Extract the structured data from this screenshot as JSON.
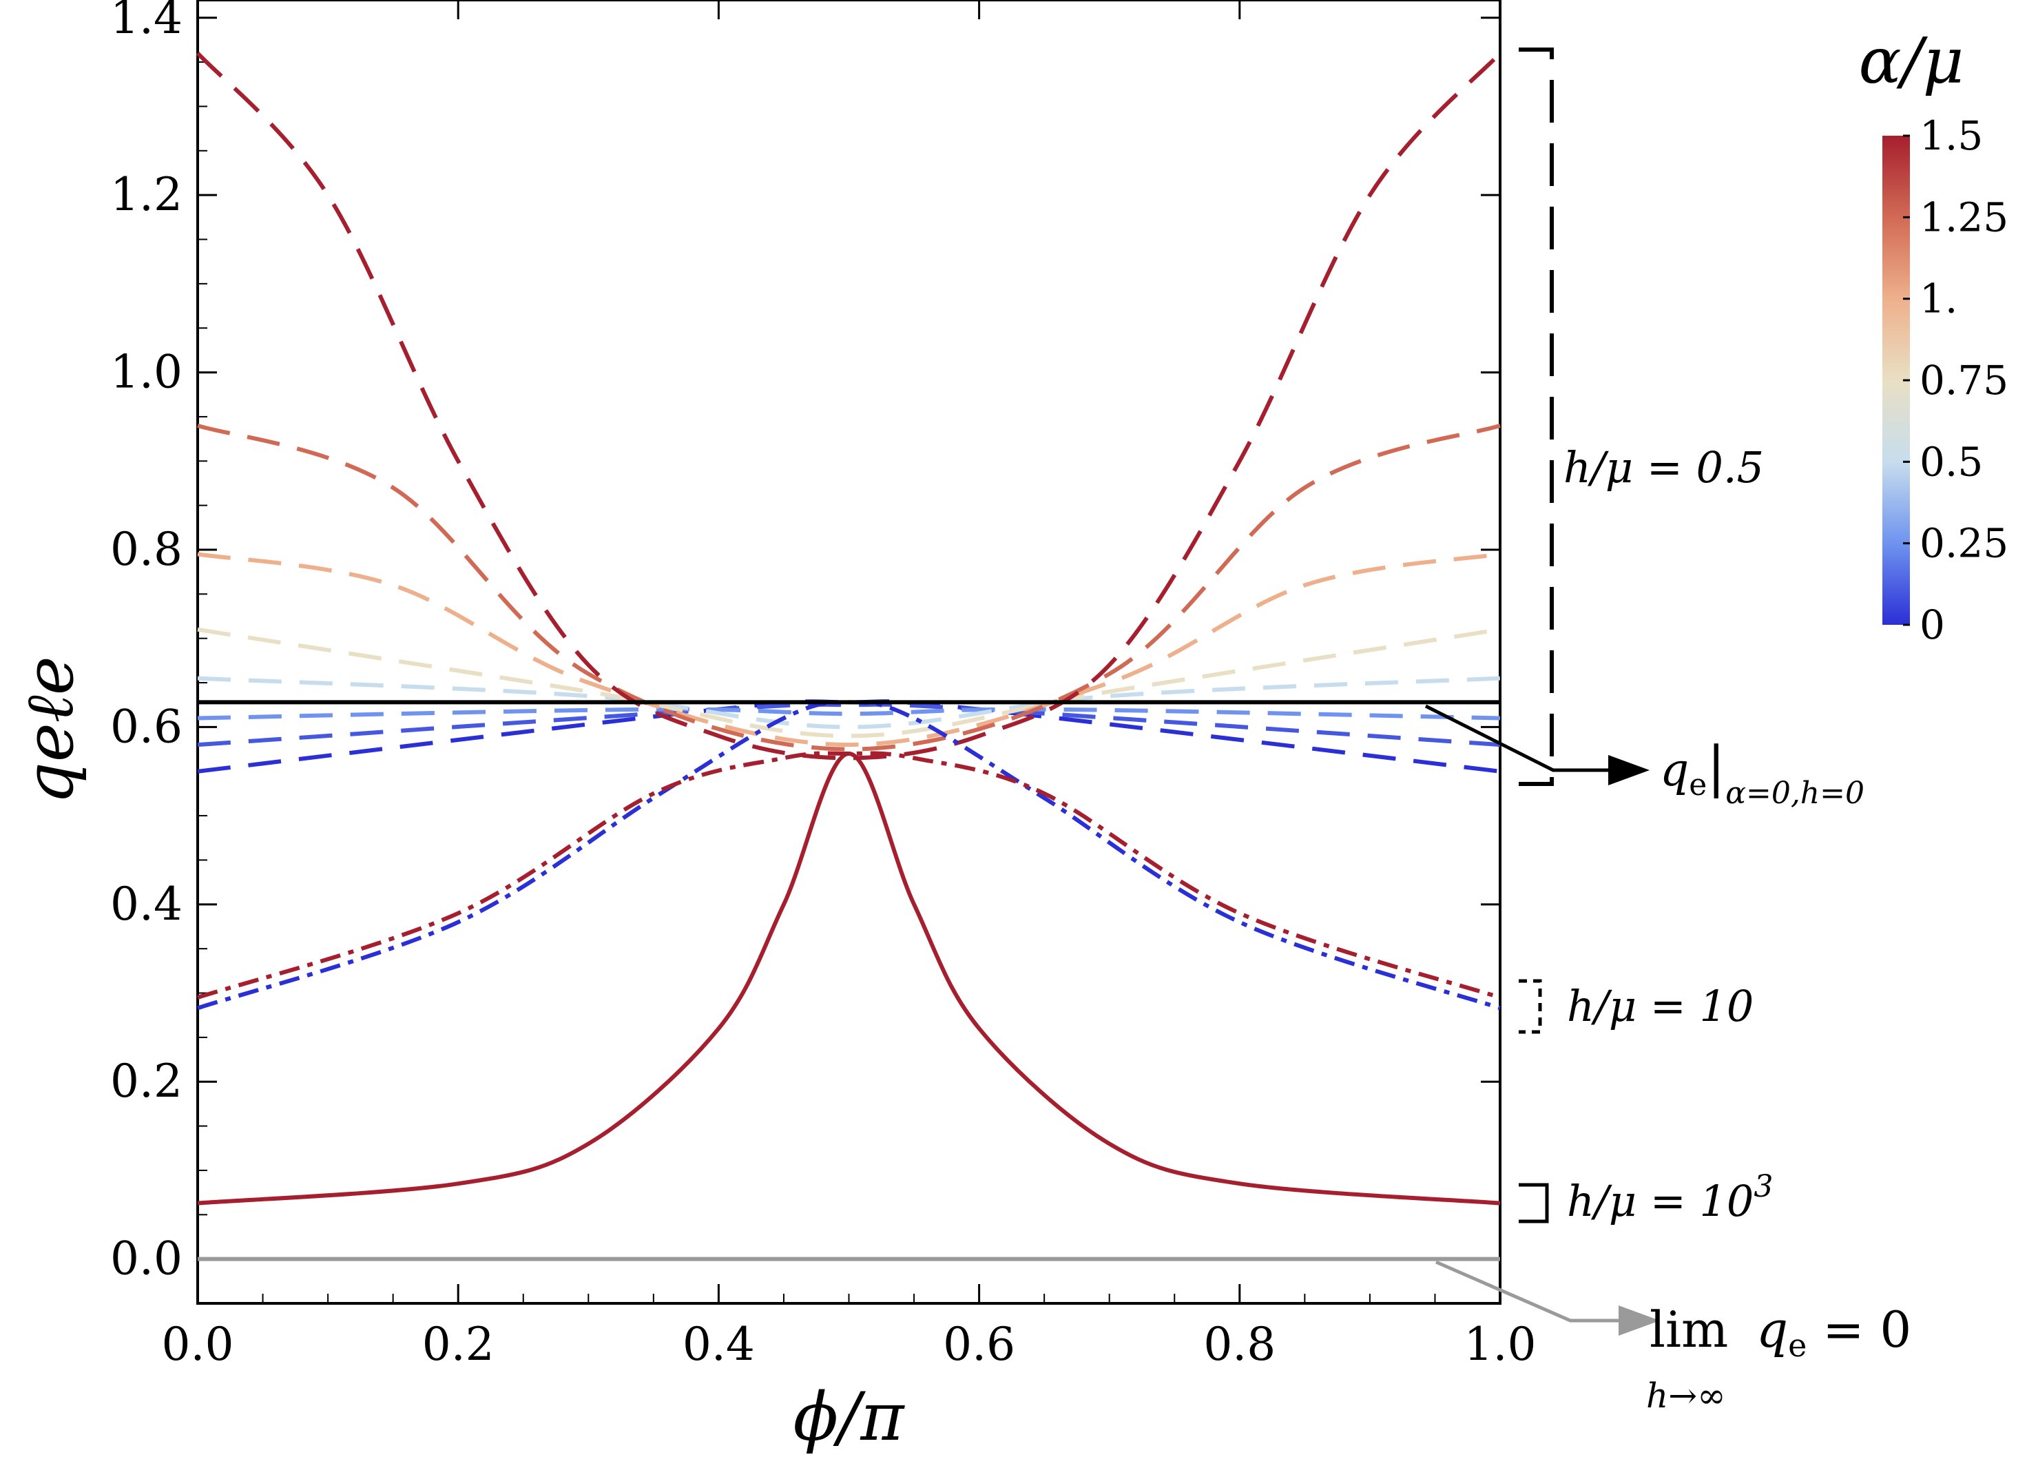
{
  "chart_data": {
    "type": "line",
    "xlabel": "ϕ/π",
    "ylabel": "qeℓe",
    "xlim": [
      0,
      1
    ],
    "ylim": [
      -0.05,
      1.42
    ],
    "x_ticks": [
      "0.0",
      "0.2",
      "0.4",
      "0.6",
      "0.8",
      "1.0"
    ],
    "y_ticks": [
      "0.0",
      "0.2",
      "0.4",
      "0.6",
      "0.8",
      "1.0",
      "1.2",
      "1.4"
    ],
    "grid": false,
    "colorbar": {
      "title": "α/μ",
      "range": [
        0,
        1.5
      ],
      "tick_labels": [
        "0",
        "0.25",
        "0.5",
        "0.75",
        "1.",
        "1.25",
        "1.5"
      ],
      "colors": [
        "#2b2fd6",
        "#6f93ef",
        "#c7dded",
        "#e9dfc4",
        "#eeb08c",
        "#d16a55",
        "#a51f2e"
      ]
    },
    "reference_lines": [
      {
        "label": "qe|α=0,h=0",
        "y": 0.628,
        "color": "#000000"
      },
      {
        "label": "lim h→∞ qe = 0",
        "y": 0.0,
        "color": "#9a9a9a"
      }
    ],
    "groups": [
      {
        "label": "h/μ = 0.5",
        "style": "dashed",
        "series": [
          {
            "alpha": 1.5,
            "values": [
              [
                0,
                1.36
              ],
              [
                0.1,
                1.2
              ],
              [
                0.2,
                0.9
              ],
              [
                0.3,
                0.67
              ],
              [
                0.4,
                0.59
              ],
              [
                0.5,
                0.565
              ],
              [
                0.6,
                0.59
              ],
              [
                0.7,
                0.67
              ],
              [
                0.8,
                0.9
              ],
              [
                0.9,
                1.2
              ],
              [
                1,
                1.36
              ]
            ]
          },
          {
            "alpha": 1.25,
            "values": [
              [
                0,
                0.94
              ],
              [
                0.15,
                0.87
              ],
              [
                0.3,
                0.66
              ],
              [
                0.5,
                0.575
              ],
              [
                0.7,
                0.66
              ],
              [
                0.85,
                0.87
              ],
              [
                1,
                0.94
              ]
            ]
          },
          {
            "alpha": 1.0,
            "values": [
              [
                0,
                0.795
              ],
              [
                0.15,
                0.76
              ],
              [
                0.3,
                0.65
              ],
              [
                0.5,
                0.58
              ],
              [
                0.7,
                0.65
              ],
              [
                0.85,
                0.76
              ],
              [
                1,
                0.795
              ]
            ]
          },
          {
            "alpha": 0.75,
            "values": [
              [
                0,
                0.71
              ],
              [
                0.3,
                0.64
              ],
              [
                0.5,
                0.59
              ],
              [
                0.7,
                0.64
              ],
              [
                1,
                0.71
              ]
            ]
          },
          {
            "alpha": 0.5,
            "values": [
              [
                0,
                0.655
              ],
              [
                0.3,
                0.635
              ],
              [
                0.5,
                0.6
              ],
              [
                0.7,
                0.635
              ],
              [
                1,
                0.655
              ]
            ]
          },
          {
            "alpha": 0.25,
            "values": [
              [
                0,
                0.61
              ],
              [
                0.35,
                0.62
              ],
              [
                0.5,
                0.615
              ],
              [
                0.65,
                0.62
              ],
              [
                1,
                0.61
              ]
            ]
          },
          {
            "alpha": 0.1,
            "values": [
              [
                0,
                0.58
              ],
              [
                0.4,
                0.62
              ],
              [
                0.5,
                0.625
              ],
              [
                0.6,
                0.62
              ],
              [
                1,
                0.58
              ]
            ]
          },
          {
            "alpha": 0.0,
            "values": [
              [
                0,
                0.55
              ],
              [
                0.4,
                0.62
              ],
              [
                0.5,
                0.628
              ],
              [
                0.6,
                0.62
              ],
              [
                1,
                0.55
              ]
            ]
          }
        ]
      },
      {
        "label": "h/μ = 10",
        "style": "dash-dot",
        "series": [
          {
            "alpha": 1.5,
            "values": [
              [
                0,
                0.295
              ],
              [
                0.2,
                0.39
              ],
              [
                0.35,
                0.525
              ],
              [
                0.45,
                0.565
              ],
              [
                0.5,
                0.57
              ],
              [
                0.55,
                0.565
              ],
              [
                0.65,
                0.525
              ],
              [
                0.8,
                0.39
              ],
              [
                1,
                0.295
              ]
            ]
          },
          {
            "alpha": 0.0,
            "values": [
              [
                0,
                0.283
              ],
              [
                0.2,
                0.38
              ],
              [
                0.35,
                0.52
              ],
              [
                0.45,
                0.61
              ],
              [
                0.5,
                0.628
              ],
              [
                0.55,
                0.61
              ],
              [
                0.65,
                0.52
              ],
              [
                0.8,
                0.38
              ],
              [
                1,
                0.283
              ]
            ]
          }
        ]
      },
      {
        "label": "h/μ = 10³",
        "style": "solid",
        "series": [
          {
            "alpha": 1.5,
            "values": [
              [
                0,
                0.063
              ],
              [
                0.2,
                0.085
              ],
              [
                0.3,
                0.13
              ],
              [
                0.4,
                0.26
              ],
              [
                0.45,
                0.4
              ],
              [
                0.5,
                0.57
              ],
              [
                0.55,
                0.4
              ],
              [
                0.6,
                0.26
              ],
              [
                0.7,
                0.13
              ],
              [
                0.8,
                0.085
              ],
              [
                1,
                0.063
              ]
            ]
          }
        ]
      }
    ]
  }
}
